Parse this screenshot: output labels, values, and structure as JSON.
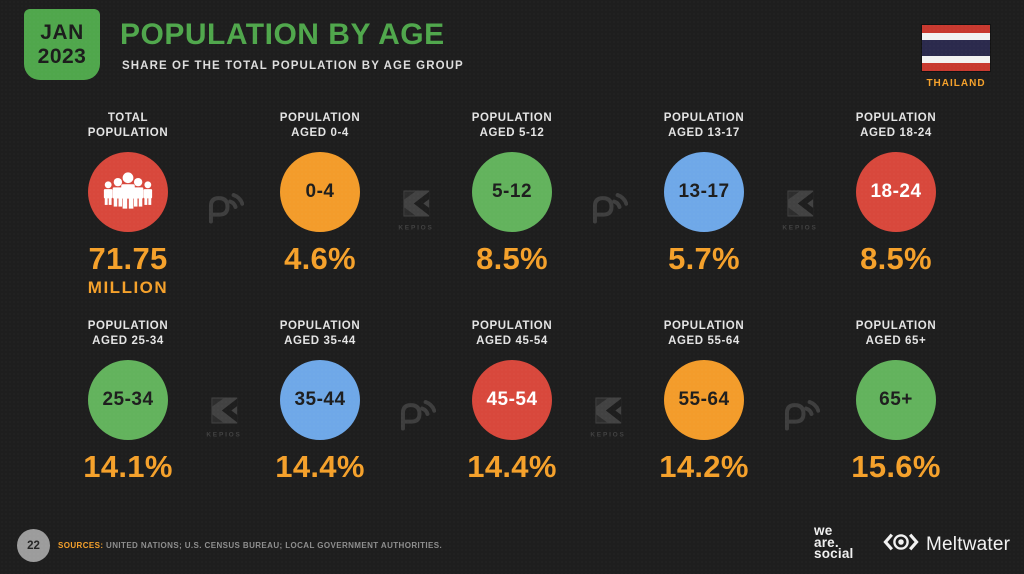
{
  "header": {
    "date_top": "JAN",
    "date_bottom": "2023",
    "title": "POPULATION BY AGE",
    "subtitle": "SHARE OF THE TOTAL POPULATION BY AGE GROUP",
    "country_label": "THAILAND"
  },
  "colors": {
    "background": "#1E1E1E",
    "brand_green": "#50A74C",
    "accent_orange": "#F5A12B",
    "circle_red": "#D8483C",
    "circle_orange": "#F39C2B",
    "circle_green": "#63B35D",
    "circle_blue": "#6FA8E8",
    "flag_red": "#C8392F",
    "flag_navy": "#2B2A4D",
    "watermark_gray": "#3E3E3E"
  },
  "cards": [
    {
      "label_line1": "TOTAL",
      "label_line2": "POPULATION",
      "circle_color": "#D8483C",
      "text_color": "#FFFFFF",
      "icon": "people-icon",
      "circle_text": "",
      "value": "71.75",
      "suffix": "MILLION"
    },
    {
      "label_line1": "POPULATION",
      "label_line2": "AGED 0-4",
      "circle_color": "#F39C2B",
      "text_color": "#1E1E1E",
      "circle_text": "0-4",
      "value": "4.6%"
    },
    {
      "label_line1": "POPULATION",
      "label_line2": "AGED 5-12",
      "circle_color": "#63B35D",
      "text_color": "#1E1E1E",
      "circle_text": "5-12",
      "value": "8.5%"
    },
    {
      "label_line1": "POPULATION",
      "label_line2": "AGED 13-17",
      "circle_color": "#6FA8E8",
      "text_color": "#1E1E1E",
      "circle_text": "13-17",
      "value": "5.7%"
    },
    {
      "label_line1": "POPULATION",
      "label_line2": "AGED 18-24",
      "circle_color": "#D8483C",
      "text_color": "#FFFFFF",
      "circle_text": "18-24",
      "value": "8.5%"
    },
    {
      "label_line1": "POPULATION",
      "label_line2": "AGED 25-34",
      "circle_color": "#63B35D",
      "text_color": "#1E1E1E",
      "circle_text": "25-34",
      "value": "14.1%"
    },
    {
      "label_line1": "POPULATION",
      "label_line2": "AGED 35-44",
      "circle_color": "#6FA8E8",
      "text_color": "#1E1E1E",
      "circle_text": "35-44",
      "value": "14.4%"
    },
    {
      "label_line1": "POPULATION",
      "label_line2": "AGED 45-54",
      "circle_color": "#D8483C",
      "text_color": "#FFFFFF",
      "circle_text": "45-54",
      "value": "14.4%"
    },
    {
      "label_line1": "POPULATION",
      "label_line2": "AGED 55-64",
      "circle_color": "#F39C2B",
      "text_color": "#1E1E1E",
      "circle_text": "55-64",
      "value": "14.2%"
    },
    {
      "label_line1": "POPULATION",
      "label_line2": "AGED 65+",
      "circle_color": "#63B35D",
      "text_color": "#1E1E1E",
      "circle_text": "65+",
      "value": "15.6%"
    }
  ],
  "watermark_label": "KEPIOS",
  "watermarks": [
    {
      "type": "datareportal",
      "row": 0,
      "gap": 0
    },
    {
      "type": "kepios",
      "row": 0,
      "gap": 1
    },
    {
      "type": "datareportal",
      "row": 0,
      "gap": 2
    },
    {
      "type": "kepios",
      "row": 0,
      "gap": 3
    },
    {
      "type": "kepios",
      "row": 1,
      "gap": 0
    },
    {
      "type": "datareportal",
      "row": 1,
      "gap": 1
    },
    {
      "type": "kepios",
      "row": 1,
      "gap": 2
    },
    {
      "type": "datareportal",
      "row": 1,
      "gap": 3
    }
  ],
  "footer": {
    "page_number": "22",
    "sources_label": "SOURCES:",
    "sources_text": " UNITED NATIONS; U.S. CENSUS BUREAU; LOCAL GOVERNMENT AUTHORITIES.",
    "wearesocial_lines": [
      "we",
      "are.",
      "social"
    ],
    "meltwater_label": "Meltwater"
  },
  "chart_data": {
    "type": "table",
    "title": "POPULATION BY AGE",
    "subtitle": "SHARE OF THE TOTAL POPULATION BY AGE GROUP",
    "region": "THAILAND",
    "date": "JAN 2023",
    "total_population": "71.75 MILLION",
    "categories": [
      "0-4",
      "5-12",
      "13-17",
      "18-24",
      "25-34",
      "35-44",
      "45-54",
      "55-64",
      "65+"
    ],
    "values_percent": [
      4.6,
      8.5,
      5.7,
      8.5,
      14.1,
      14.4,
      14.4,
      14.2,
      15.6
    ]
  }
}
